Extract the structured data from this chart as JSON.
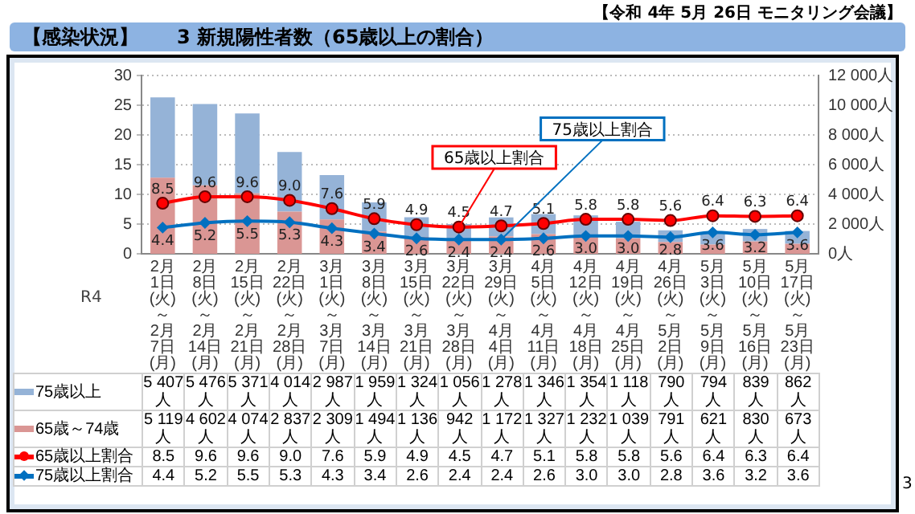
{
  "chart_data": {
    "type": "bar",
    "title": "【感染状況】　　3 新規陽性者数（65歳以上の割合）",
    "subtitle": "【令和 4年 5月 26日 モニタリング会議】",
    "categories": [
      "2月1日\n(火)\n～\n2月7日\n(月)",
      "2月8日\n(火)\n～\n2月14日\n(月)",
      "2月15日\n(火)\n～\n2月21日\n(月)",
      "2月22日\n(火)\n～\n2月28日\n(月)",
      "3月1日\n(火)\n～\n3月7日\n(月)",
      "3月8日\n(火)\n～\n3月14日\n(月)",
      "3月15日\n(火)\n～\n3月21日\n(月)",
      "3月22日\n(火)\n～\n3月28日\n(月)",
      "3月29日\n(火)\n～\n4月4日\n(月)",
      "4月5日\n(火)\n～\n4月11日\n(月)",
      "4月12日\n(火)\n～\n4月18日\n(月)",
      "4月19日\n(火)\n～\n4月25日\n(月)",
      "4月26日\n(火)\n～\n5月2日\n(月)",
      "5月3日\n(火)\n～\n5月9日\n(月)",
      "5月10日\n(火)\n～\n5月16日\n(月)",
      "5月17日\n(火)\n～\n5月23日\n(月)"
    ],
    "series": [
      {
        "name": "65歳～74歳",
        "axis": "y2",
        "color": "#da9694",
        "values": [
          5119,
          4602,
          4074,
          2837,
          2309,
          1494,
          1136,
          942,
          1172,
          1327,
          1232,
          1039,
          791,
          621,
          830,
          673
        ],
        "value_labels": [
          "5 119人",
          "4 602人",
          "4 074人",
          "2 837人",
          "2 309人",
          "1 494人",
          "1 136人",
          "942人",
          "1 172人",
          "1 327人",
          "1 232人",
          "1 039人",
          "791人",
          "621人",
          "830人",
          "673人"
        ]
      },
      {
        "name": "75歳以上",
        "axis": "y2",
        "color": "#95b3d7",
        "values": [
          5407,
          5476,
          5371,
          4014,
          2987,
          1959,
          1324,
          1056,
          1278,
          1346,
          1354,
          1118,
          790,
          794,
          839,
          862
        ],
        "value_labels": [
          "5 407人",
          "5 476人",
          "5 371人",
          "4 014人",
          "2 987人",
          "1 959人",
          "1 324人",
          "1 056人",
          "1 278人",
          "1 346人",
          "1 354人",
          "1 118人",
          "790人",
          "794人",
          "839人",
          "862人"
        ]
      },
      {
        "name": "65歳以上割合",
        "type": "line",
        "color": "#ff0000",
        "marker": "circle",
        "values": [
          8.5,
          9.6,
          9.6,
          9.0,
          7.6,
          5.9,
          4.9,
          4.5,
          4.7,
          5.1,
          5.8,
          5.8,
          5.6,
          6.4,
          6.3,
          6.4
        ],
        "value_labels": [
          "8.5",
          "9.6",
          "9.6",
          "9.0",
          "7.6",
          "5.9",
          "4.9",
          "4.5",
          "4.7",
          "5.1",
          "5.8",
          "5.8",
          "5.6",
          "6.4",
          "6.3",
          "6.4"
        ]
      },
      {
        "name": "75歳以上割合",
        "type": "line",
        "color": "#0070c0",
        "marker": "diamond",
        "values": [
          4.4,
          5.2,
          5.5,
          5.3,
          4.3,
          3.4,
          2.6,
          2.4,
          2.4,
          2.6,
          3.0,
          3.0,
          2.8,
          3.6,
          3.2,
          3.6
        ],
        "value_labels": [
          "4.4",
          "5.2",
          "5.5",
          "5.3",
          "4.3",
          "3.4",
          "2.6",
          "2.4",
          "2.4",
          "2.6",
          "3.0",
          "3.0",
          "2.8",
          "3.6",
          "3.2",
          "3.6"
        ]
      }
    ],
    "stacked": true,
    "ylim": [
      0,
      30
    ],
    "yticks": [
      0,
      5,
      10,
      15,
      20,
      25,
      30
    ],
    "y2lim": [
      0,
      12000
    ],
    "y2ticks": [
      {
        "value": 0,
        "label": "0人"
      },
      {
        "value": 2000,
        "label": "2 000人"
      },
      {
        "value": 4000,
        "label": "4 000人"
      },
      {
        "value": 6000,
        "label": "6 000人"
      },
      {
        "value": 8000,
        "label": "8 000人"
      },
      {
        "value": 10000,
        "label": "10 000人"
      },
      {
        "value": 12000,
        "label": "12 000人"
      }
    ],
    "grid": "y",
    "legend": "bottom",
    "annotations": [
      {
        "text": "65歳以上割合",
        "x": "3月22日\n(火)\n～\n3月28日\n(月)",
        "y": 4.5
      },
      {
        "text": "75歳以上割合",
        "x": "3月29日\n(火)\n～\n4月4日\n(月)",
        "y": 2.4
      },
      "R4",
      "3"
    ]
  }
}
